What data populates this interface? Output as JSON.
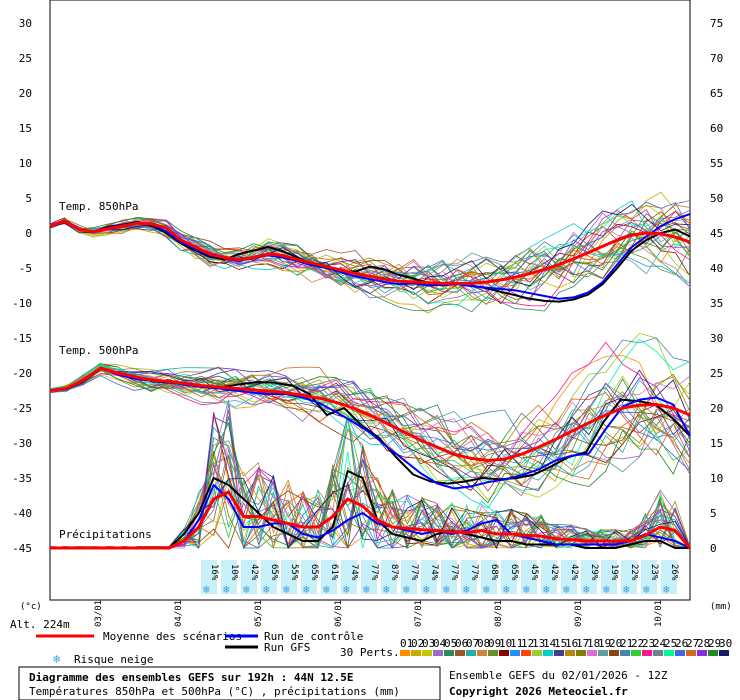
{
  "chart_data": {
    "type": "line",
    "left_axis_unit": "(°c)",
    "right_axis_unit": "(mm)",
    "left_ticks": [
      30,
      25,
      20,
      15,
      10,
      5,
      0,
      -5,
      -10,
      -15,
      -20,
      -25,
      -30,
      -35,
      -40,
      -45
    ],
    "right_ticks": [
      75,
      70,
      65,
      60,
      55,
      50,
      45,
      40,
      35,
      30,
      25,
      20,
      15,
      10,
      5,
      0
    ],
    "ylim_temp": [
      -45,
      30
    ],
    "ylim_precip": [
      0,
      75
    ],
    "x_ticks": [
      "03/01",
      "04/01",
      "05/01",
      "06/01",
      "07/01",
      "08/01",
      "09/01",
      "10/01"
    ],
    "labels": {
      "t850": "Temp. 850hPa",
      "t500": "Temp. 500hPa",
      "precip": "Précipitations"
    },
    "snow_risk": [
      "16%",
      "10%",
      "42%",
      "65%",
      "55%",
      "65%",
      "61%",
      "74%",
      "77%",
      "87%",
      "77%",
      "74%",
      "77%",
      "77%",
      "68%",
      "65%",
      "45%",
      "42%",
      "42%",
      "29%",
      "19%",
      "22%",
      "23%",
      "26%"
    ],
    "altitude": "Alt. 224m",
    "legend": {
      "mean": "Moyenne des scénarios",
      "control": "Run de contrôle",
      "gfs": "Run GFS",
      "snow": "Risque neige",
      "perts_label": "30 Perts.",
      "perts": [
        "01",
        "02",
        "03",
        "04",
        "05",
        "06",
        "07",
        "08",
        "09",
        "10",
        "11",
        "12",
        "13",
        "14",
        "15",
        "16",
        "17",
        "18",
        "19",
        "20",
        "21",
        "22",
        "23",
        "24",
        "25",
        "26",
        "27",
        "28",
        "29",
        "30"
      ]
    },
    "colors": {
      "mean": "#ff0000",
      "control": "#0000ff",
      "gfs": "#000000",
      "snow_bg": "#c8f0f8",
      "snow_icon": "#3aa0e0"
    },
    "pert_colors": [
      "#ff8c00",
      "#ccaa00",
      "#c8c800",
      "#9a6cc8",
      "#2e8b57",
      "#a0522d",
      "#20b2aa",
      "#cd853f",
      "#6b8e23",
      "#8b0000",
      "#1e90ff",
      "#ff4500",
      "#9acd32",
      "#00ced1",
      "#483d8b",
      "#b8860b",
      "#808000",
      "#da70d6",
      "#5f9ea0",
      "#8b4513",
      "#4682b4",
      "#32cd32",
      "#ff1493",
      "#708090",
      "#00fa9a",
      "#4169e1",
      "#d2691e",
      "#8a2be2",
      "#228b22",
      "#191970"
    ],
    "series": {
      "t850_mean": [
        1,
        1.7,
        0.5,
        0.2,
        0.6,
        1,
        1.4,
        1.3,
        0.7,
        -1,
        -2,
        -3,
        -3.5,
        -3.8,
        -3.5,
        -3,
        -3.2,
        -3.8,
        -4.3,
        -4.8,
        -5.3,
        -5.8,
        -6.2,
        -6.6,
        -6.9,
        -7,
        -7.1,
        -7.2,
        -7.2,
        -7.2,
        -7,
        -6.7,
        -6.3,
        -5.8,
        -5.2,
        -4.5,
        -3.7,
        -2.8,
        -1.9,
        -1,
        -0.3,
        0,
        -0.1,
        -0.6,
        -1.3
      ],
      "t850_control": [
        1,
        1.7,
        0.5,
        0.2,
        0.8,
        1.1,
        1.5,
        1.2,
        0.2,
        -1.3,
        -2.3,
        -3.2,
        -3.6,
        -4,
        -3.5,
        -3.2,
        -3.5,
        -4,
        -4.6,
        -5,
        -5.6,
        -6.2,
        -6.6,
        -7,
        -7.3,
        -7.2,
        -7.5,
        -7.4,
        -7.3,
        -7.6,
        -7.8,
        -8,
        -8.2,
        -8.6,
        -9,
        -9.4,
        -9.2,
        -8.5,
        -7,
        -4.5,
        -2,
        -0.5,
        1,
        2,
        2.7
      ],
      "t850_gfs": [
        1,
        1.7,
        0.5,
        0.2,
        0.9,
        1.2,
        1.6,
        1,
        0,
        -1.5,
        -2.5,
        -3.4,
        -3.8,
        -3,
        -2.5,
        -2,
        -2.6,
        -3.5,
        -4.4,
        -5,
        -5.5,
        -5.5,
        -4.8,
        -5.2,
        -6,
        -6.5,
        -7.2,
        -7.5,
        -7.2,
        -7.5,
        -7.9,
        -8.4,
        -8.9,
        -9.4,
        -9.7,
        -9.8,
        -9.5,
        -8.8,
        -7.3,
        -5,
        -2.5,
        -1,
        0,
        0.5,
        -0.5
      ],
      "t500_mean": [
        -22.5,
        -22.2,
        -21,
        -19.3,
        -20,
        -20.5,
        -21,
        -21.2,
        -21.5,
        -21.8,
        -22,
        -22.2,
        -22.4,
        -22.6,
        -22.8,
        -23.2,
        -23.6,
        -24.2,
        -25,
        -26,
        -27.2,
        -28.4,
        -29.6,
        -30.6,
        -31.6,
        -32.2,
        -32.5,
        -32.3,
        -31.6,
        -30.6,
        -29.5,
        -28.3,
        -27.1,
        -26,
        -25,
        -24.6,
        -24.5,
        -25,
        -26
      ],
      "t500_control": [
        -22.5,
        -22.2,
        -21,
        -19.3,
        -20.2,
        -20.8,
        -21.1,
        -21.3,
        -21.7,
        -22,
        -22.2,
        -22.5,
        -22.8,
        -23,
        -23,
        -23.5,
        -24.3,
        -25.6,
        -27,
        -28.5,
        -30.5,
        -32.4,
        -34.3,
        -35.8,
        -36.5,
        -36.2,
        -35.6,
        -35.2,
        -34.6,
        -33.8,
        -32.5,
        -31.8,
        -31.5,
        -28,
        -24.8,
        -23.8,
        -23.5,
        -24.5,
        -29
      ],
      "t500_gfs": [
        -22.5,
        -22.2,
        -21,
        -19.3,
        -20.3,
        -20.7,
        -21.2,
        -21.4,
        -21.6,
        -21.9,
        -22,
        -21.6,
        -21.3,
        -21.4,
        -21.8,
        -23,
        -26,
        -25,
        -27.5,
        -29.2,
        -32,
        -34.5,
        -35.5,
        -35.8,
        -35.5,
        -35,
        -35.2,
        -35,
        -34.5,
        -33.3,
        -32,
        -31.3,
        -27,
        -23.8,
        -24,
        -24.5,
        -26.5,
        -29
      ],
      "precip_mean": [
        0,
        0,
        0,
        0,
        0,
        0,
        0,
        0,
        0,
        1,
        3,
        7,
        8,
        4.5,
        4.5,
        4,
        3.5,
        3,
        3,
        4.5,
        7,
        6,
        4,
        3,
        2.8,
        2.6,
        2.5,
        2.3,
        2.2,
        2.5,
        2,
        2,
        1.8,
        1.7,
        1.3,
        1.2,
        1,
        1,
        1,
        1,
        1.8,
        3,
        2.5,
        0
      ],
      "precip_control": [
        0,
        0,
        0,
        0,
        0,
        0,
        0,
        0,
        0,
        1,
        4,
        9,
        7,
        3,
        3,
        3.5,
        3.5,
        2,
        1.5,
        2.5,
        4,
        5,
        3.5,
        3,
        2.5,
        2,
        2.5,
        2,
        2.5,
        3.5,
        4,
        2,
        1.5,
        1,
        0.5,
        0.5,
        0.5,
        0.5,
        0.5,
        1,
        2,
        1.5,
        1,
        0
      ],
      "precip_gfs": [
        0,
        0,
        0,
        0,
        0,
        0,
        0,
        0,
        0,
        2,
        5,
        10,
        9,
        7,
        5,
        3,
        2,
        1,
        1,
        3,
        11,
        10,
        4,
        2,
        1.5,
        1,
        2,
        2.5,
        2,
        1.5,
        1,
        1,
        0.5,
        0.5,
        0.5,
        0.5,
        0,
        0,
        0,
        0.5,
        1,
        1,
        0,
        0
      ]
    },
    "notes": {
      "title": "Diagramme des ensembles GEFS sur 192h : 44N 12.5E",
      "subtitle": "Températures 850hPa et 500hPa (°C) , précipitations (mm)",
      "run": "Ensemble GEFS du 02/01/2026 - 12Z",
      "copyright": "Copyright 2026 Meteociel.fr"
    }
  }
}
